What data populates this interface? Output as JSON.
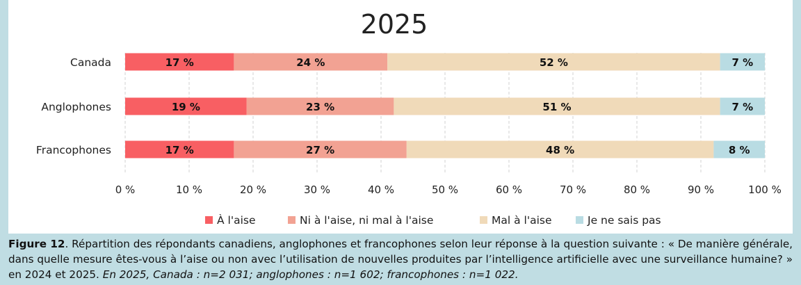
{
  "chart_data": {
    "type": "bar",
    "orientation": "horizontal",
    "stacked": true,
    "title": "2025",
    "categories": [
      "Canada",
      "Anglophones",
      "Francophones"
    ],
    "series": [
      {
        "name": "À l'aise",
        "color": "#f85f63",
        "values": [
          17,
          19,
          17
        ],
        "labels": [
          "17 %",
          "19 %",
          "17 %"
        ]
      },
      {
        "name": "Ni à l'aise, ni mal à l'aise",
        "color": "#f2a293",
        "values": [
          24,
          23,
          27
        ],
        "labels": [
          "24 %",
          "23 %",
          "27 %"
        ]
      },
      {
        "name": "Mal à l'aise",
        "color": "#f0dab9",
        "values": [
          52,
          51,
          48
        ],
        "labels": [
          "52 %",
          "51 %",
          "48 %"
        ]
      },
      {
        "name": "Je ne sais pas",
        "color": "#b9dce3",
        "values": [
          7,
          7,
          8
        ],
        "labels": [
          "7 %",
          "7 %",
          "8 %"
        ]
      }
    ],
    "xlim": [
      0,
      100
    ],
    "xticks": [
      "0 %",
      "10 %",
      "20 %",
      "30 %",
      "40 %",
      "50 %",
      "60 %",
      "70 %",
      "80 %",
      "90 %",
      "100 %"
    ],
    "grid": true,
    "legend_position": "bottom"
  },
  "caption": {
    "figure_label": "Figure 12",
    "text": ". Répartition des répondants canadiens, anglophones et francophones selon leur réponse à la question suivante : « De manière générale, dans quelle mesure êtes-vous à l’aise ou non avec l’utilisation de nouvelles produites par l’intelligence artificielle avec une surveillance humaine? » en 2024 et 2025. ",
    "sample_sizes": "En 2025, Canada : n=2 031; anglophones : n=1 602; francophones : n=1 022."
  }
}
